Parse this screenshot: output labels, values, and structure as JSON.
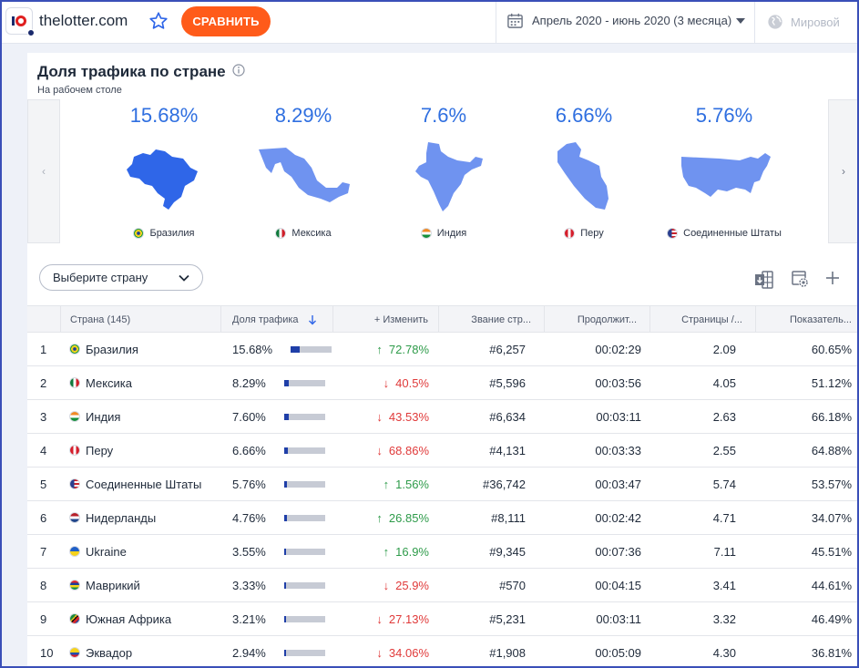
{
  "header": {
    "site_name": "thelotter.com",
    "compare_label": "СРАВНИТЬ",
    "date_range": "Апрель 2020 - июнь 2020 (3 месяца)",
    "region": "Мировой"
  },
  "card": {
    "title": "Доля трафика по стране",
    "subtitle": "На рабочем столе",
    "top_countries": [
      {
        "share": "15.68%",
        "name": "Бразилия",
        "flag": "br",
        "fill": "#2f66e8"
      },
      {
        "share": "8.29%",
        "name": "Мексика",
        "flag": "mx",
        "fill": "#6f93f0"
      },
      {
        "share": "7.6%",
        "name": "Индия",
        "flag": "in",
        "fill": "#6f93f0"
      },
      {
        "share": "6.66%",
        "name": "Перу",
        "flag": "pe",
        "fill": "#6f93f0"
      },
      {
        "share": "5.76%",
        "name": "Соединенные Штаты",
        "flag": "us",
        "fill": "#6f93f0"
      }
    ],
    "select_placeholder": "Выберите страну"
  },
  "table": {
    "columns": {
      "country": "Страна (145)",
      "share": "Доля трафика",
      "change": "+ Изменить",
      "rank": "Звание стр...",
      "duration": "Продолжит...",
      "pages": "Страницы /...",
      "bounce": "Показатель..."
    },
    "rows": [
      {
        "n": "1",
        "country": "Бразилия",
        "flag": "br",
        "share": "15.68%",
        "bar": 0.22,
        "dir": "up",
        "change": "72.78%",
        "rank": "#6,257",
        "duration": "00:02:29",
        "pages": "2.09",
        "bounce": "60.65%"
      },
      {
        "n": "2",
        "country": "Мексика",
        "flag": "mx",
        "share": "8.29%",
        "bar": 0.12,
        "dir": "down",
        "change": "40.5%",
        "rank": "#5,596",
        "duration": "00:03:56",
        "pages": "4.05",
        "bounce": "51.12%"
      },
      {
        "n": "3",
        "country": "Индия",
        "flag": "in",
        "share": "7.60%",
        "bar": 0.11,
        "dir": "down",
        "change": "43.53%",
        "rank": "#6,634",
        "duration": "00:03:11",
        "pages": "2.63",
        "bounce": "66.18%"
      },
      {
        "n": "4",
        "country": "Перу",
        "flag": "pe",
        "share": "6.66%",
        "bar": 0.1,
        "dir": "down",
        "change": "68.86%",
        "rank": "#4,131",
        "duration": "00:03:33",
        "pages": "2.55",
        "bounce": "64.88%"
      },
      {
        "n": "5",
        "country": "Соединенные Штаты",
        "flag": "us",
        "share": "5.76%",
        "bar": 0.08,
        "dir": "up",
        "change": "1.56%",
        "rank": "#36,742",
        "duration": "00:03:47",
        "pages": "5.74",
        "bounce": "53.57%"
      },
      {
        "n": "6",
        "country": "Нидерланды",
        "flag": "nl",
        "share": "4.76%",
        "bar": 0.07,
        "dir": "up",
        "change": "26.85%",
        "rank": "#8,111",
        "duration": "00:02:42",
        "pages": "4.71",
        "bounce": "34.07%"
      },
      {
        "n": "7",
        "country": "Ukraine",
        "flag": "ua",
        "share": "3.55%",
        "bar": 0.05,
        "dir": "up",
        "change": "16.9%",
        "rank": "#9,345",
        "duration": "00:07:36",
        "pages": "7.11",
        "bounce": "45.51%"
      },
      {
        "n": "8",
        "country": "Маврикий",
        "flag": "mu",
        "share": "3.33%",
        "bar": 0.05,
        "dir": "down",
        "change": "25.9%",
        "rank": "#570",
        "duration": "00:04:15",
        "pages": "3.41",
        "bounce": "44.61%"
      },
      {
        "n": "9",
        "country": "Южная Африка",
        "flag": "za",
        "share": "3.21%",
        "bar": 0.05,
        "dir": "down",
        "change": "27.13%",
        "rank": "#5,231",
        "duration": "00:03:11",
        "pages": "3.32",
        "bounce": "46.49%"
      },
      {
        "n": "10",
        "country": "Эквадор",
        "flag": "ec",
        "share": "2.94%",
        "bar": 0.04,
        "dir": "down",
        "change": "34.06%",
        "rank": "#1,908",
        "duration": "00:05:09",
        "pages": "4.30",
        "bounce": "36.81%"
      }
    ]
  }
}
